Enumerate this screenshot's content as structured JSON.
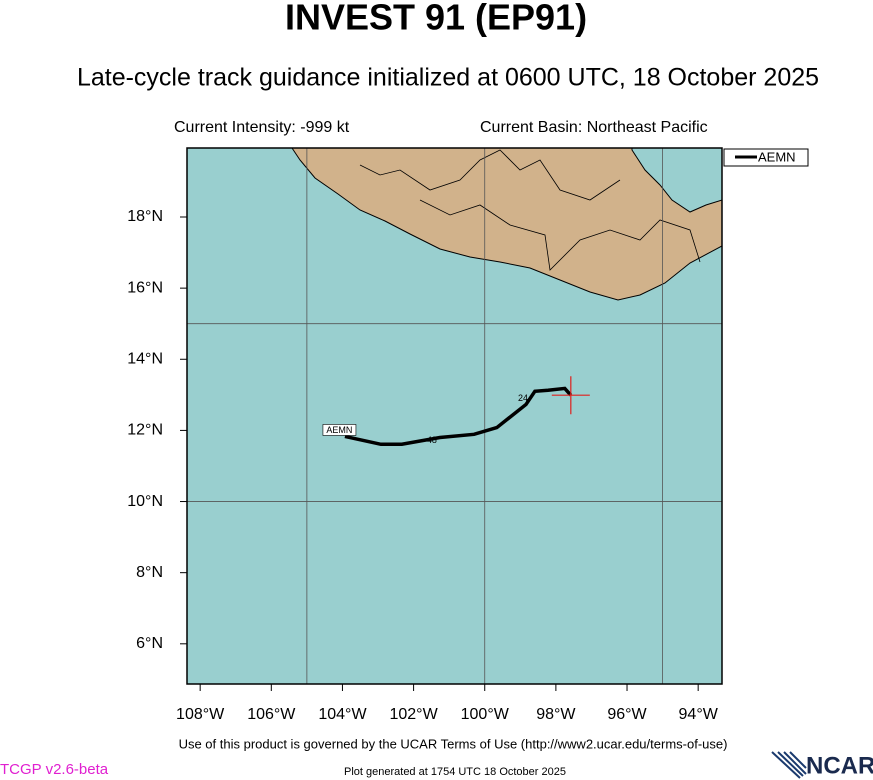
{
  "chart_data": {
    "type": "track",
    "title": "INVEST 91 (EP91)",
    "subtitle": "Late-cycle track guidance initialized at 0600 UTC, 18 October 2025",
    "intensity_label": "Current Intensity: -999 kt",
    "basin_label": "Current Basin: Northeast Pacific",
    "xlim": [
      -108.37,
      -93.33
    ],
    "ylim": [
      4.87,
      19.94
    ],
    "xticks": [
      {
        "value": -108,
        "label": "108°W"
      },
      {
        "value": -106,
        "label": "106°W"
      },
      {
        "value": -104,
        "label": "104°W"
      },
      {
        "value": -102,
        "label": "102°W"
      },
      {
        "value": -100,
        "label": "100°W"
      },
      {
        "value": -98,
        "label": "98°W"
      },
      {
        "value": -96,
        "label": "96°W"
      },
      {
        "value": -94,
        "label": "94°W"
      }
    ],
    "yticks": [
      {
        "value": 6,
        "label": "6°N"
      },
      {
        "value": 8,
        "label": "8°N"
      },
      {
        "value": 10,
        "label": "10°N"
      },
      {
        "value": 12,
        "label": "12°N"
      },
      {
        "value": 14,
        "label": "14°N"
      },
      {
        "value": 16,
        "label": "16°N"
      },
      {
        "value": 18,
        "label": "18°N"
      }
    ],
    "grid_x": [
      -105,
      -100,
      -95
    ],
    "grid_y": [
      10,
      15
    ],
    "series": [
      {
        "name": "AEMN",
        "color": "#000000",
        "x": [
          -97.58,
          -97.75,
          -98.22,
          -98.59,
          -98.84,
          -99.66,
          -100.3,
          -101.26,
          -102.33,
          -102.92,
          -103.93
        ],
        "values": [
          12.99,
          13.18,
          13.13,
          13.1,
          12.73,
          12.08,
          11.89,
          11.8,
          11.61,
          11.61,
          11.83
        ]
      }
    ],
    "hour_labels": [
      "24",
      "48"
    ],
    "current_position_color": "#e0201e"
  },
  "footer": {
    "terms": "Use of this product is governed by the UCAR Terms of Use (http://www2.ucar.edu/terms-of-use)",
    "version": "TCGP v2.6-beta",
    "generated": "Plot generated at 1754 UTC   18 October 2025",
    "logo": "NCAR"
  }
}
